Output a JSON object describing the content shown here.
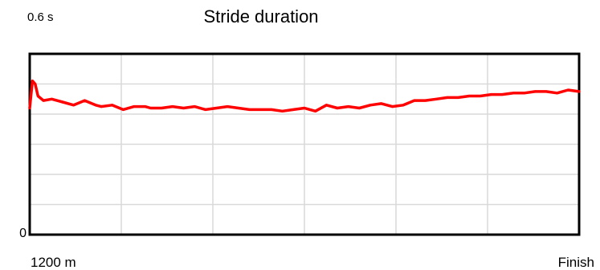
{
  "chart_data": {
    "type": "line",
    "title": "Stride duration",
    "y_top_label": "0.6 s",
    "y_bottom_label": "0",
    "x_start_label": "1200 m",
    "x_end_label": "Finish",
    "ylim": [
      0,
      0.6
    ],
    "xlim": [
      0,
      1
    ],
    "grid": true,
    "line_color": "#ff0000",
    "grid_color": "#d9d9d9",
    "series": [
      {
        "x": [
          0,
          0.005,
          0.01,
          0.015,
          0.025,
          0.04,
          0.06,
          0.08,
          0.1,
          0.12,
          0.13,
          0.15,
          0.17,
          0.19,
          0.21,
          0.22,
          0.24,
          0.26,
          0.28,
          0.3,
          0.32,
          0.34,
          0.36,
          0.38,
          0.4,
          0.42,
          0.44,
          0.46,
          0.48,
          0.5,
          0.52,
          0.54,
          0.56,
          0.58,
          0.6,
          0.62,
          0.64,
          0.66,
          0.68,
          0.7,
          0.72,
          0.74,
          0.76,
          0.78,
          0.8,
          0.82,
          0.84,
          0.86,
          0.88,
          0.9,
          0.92,
          0.94,
          0.96,
          0.98,
          1.0
        ],
        "y": [
          0.42,
          0.51,
          0.5,
          0.46,
          0.445,
          0.45,
          0.44,
          0.43,
          0.445,
          0.43,
          0.425,
          0.43,
          0.415,
          0.425,
          0.425,
          0.42,
          0.42,
          0.425,
          0.42,
          0.425,
          0.415,
          0.42,
          0.425,
          0.42,
          0.415,
          0.415,
          0.415,
          0.41,
          0.415,
          0.42,
          0.41,
          0.43,
          0.42,
          0.425,
          0.42,
          0.43,
          0.435,
          0.425,
          0.43,
          0.445,
          0.445,
          0.45,
          0.455,
          0.455,
          0.46,
          0.46,
          0.465,
          0.465,
          0.47,
          0.47,
          0.475,
          0.475,
          0.47,
          0.48,
          0.475
        ]
      }
    ]
  }
}
